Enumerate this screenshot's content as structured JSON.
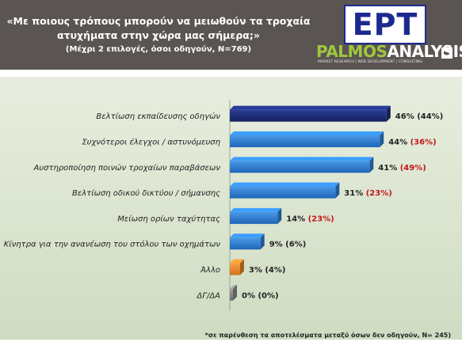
{
  "header": {
    "title": "«Με ποιους τρόπους μπορούν να μειωθούν τα τροχαία ατυχήματα στην χώρα μας σήμερα;»",
    "subtitle": "(Μέχρι 2 επιλογές, όσοι οδηγούν, N=769)"
  },
  "logos": {
    "ert": "ΕΡΤ",
    "palmos_part1": "PALMOS",
    "palmos_part2": "ANALYSIS",
    "palmos_tagline": "MARKET RESEARCH | WEB DEVELOPMENT | CONSULTING"
  },
  "footnote": "*σε παρένθεση τα αποτελέσματα μεταξύ όσων δεν οδηγούν, N= 245)",
  "colors": {
    "header_bg": "#5a5552",
    "bar_first": "#1e2f7a",
    "bar_default": "#2f7fd4",
    "bar_other": "#e8862a",
    "bar_none": "#8a8a8a",
    "red_text": "#c0181b"
  },
  "chart_data": {
    "type": "bar",
    "orientation": "horizontal",
    "xlim": [
      0,
      50
    ],
    "categories": [
      "Βελτίωση εκπαίδευσης οδηγών",
      "Συχνότεροι έλεγχοι / αστυνόμευση",
      "Αυστηροποίηση ποινών τροχαίων παραβάσεων",
      "Βελτίωση οδικού δικτύου / σήμανσης",
      "Μείωση ορίων ταχύτητας",
      "Κίνητρα για την ανανέωση του στόλου των οχημάτων",
      "Άλλο",
      "ΔΓ/ΔΑ"
    ],
    "series": [
      {
        "values": [
          46,
          44,
          41,
          31,
          14,
          9,
          3,
          0
        ],
        "labels": [
          "46%",
          "44%",
          "41%",
          "31%",
          "14%",
          "9%",
          "3%",
          "0%"
        ]
      },
      {
        "values": [
          44,
          36,
          49,
          23,
          23,
          6,
          4,
          0
        ],
        "labels": [
          "(44%)",
          "(36%)",
          "(49%)",
          "(23%)",
          "(23%)",
          "(6%)",
          "(4%)",
          "(0%)"
        ],
        "highlight": [
          false,
          true,
          true,
          true,
          true,
          false,
          false,
          false
        ]
      }
    ]
  }
}
